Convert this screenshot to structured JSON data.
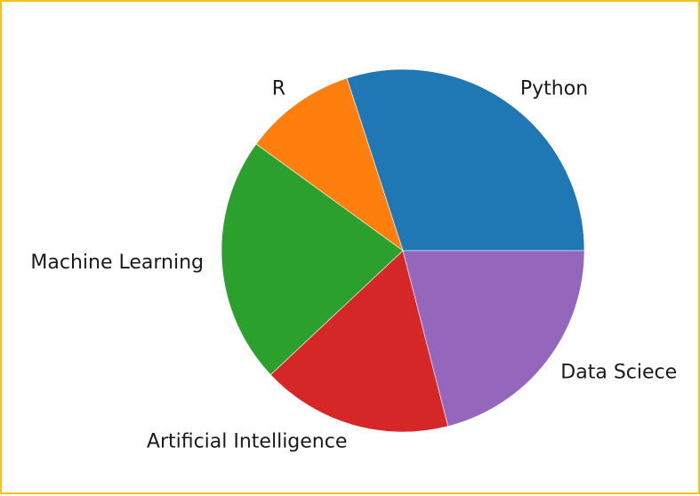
{
  "chart_data": {
    "type": "pie",
    "categories": [
      "Python",
      "R",
      "Machine Learning",
      "Artificial Intelligence",
      "Data Sciece"
    ],
    "values": [
      30,
      10,
      22,
      17,
      21
    ],
    "colors": [
      "#1f77b4",
      "#ff7f0e",
      "#2ca02c",
      "#d62728",
      "#9467bd"
    ],
    "start_angle_deg": 0,
    "direction": "counterclockwise",
    "title": "",
    "legend": "none"
  },
  "frame": {
    "border_color": "#f5c21b"
  }
}
